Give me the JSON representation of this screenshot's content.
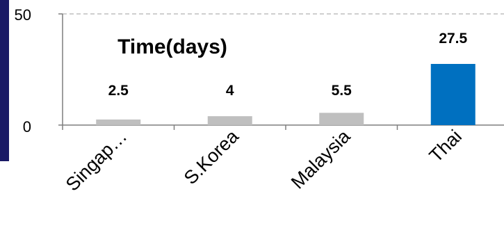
{
  "chart_data": {
    "type": "bar",
    "title": "Time(days)",
    "categories": [
      "Singap…",
      "S.Korea",
      "Malaysia",
      "Thai"
    ],
    "values": [
      2.5,
      4,
      5.5,
      27.5
    ],
    "value_labels": [
      "2.5",
      "4",
      "5.5",
      "27.5"
    ],
    "ylim": [
      0,
      50
    ],
    "yticks": [
      "0",
      "50"
    ],
    "xlabel": "",
    "ylabel": "",
    "grid": "dashed line at top of axis",
    "colors": [
      "#bfbfbf",
      "#bfbfbf",
      "#bfbfbf",
      "#0070c0"
    ],
    "accent": "#1a1a66"
  }
}
